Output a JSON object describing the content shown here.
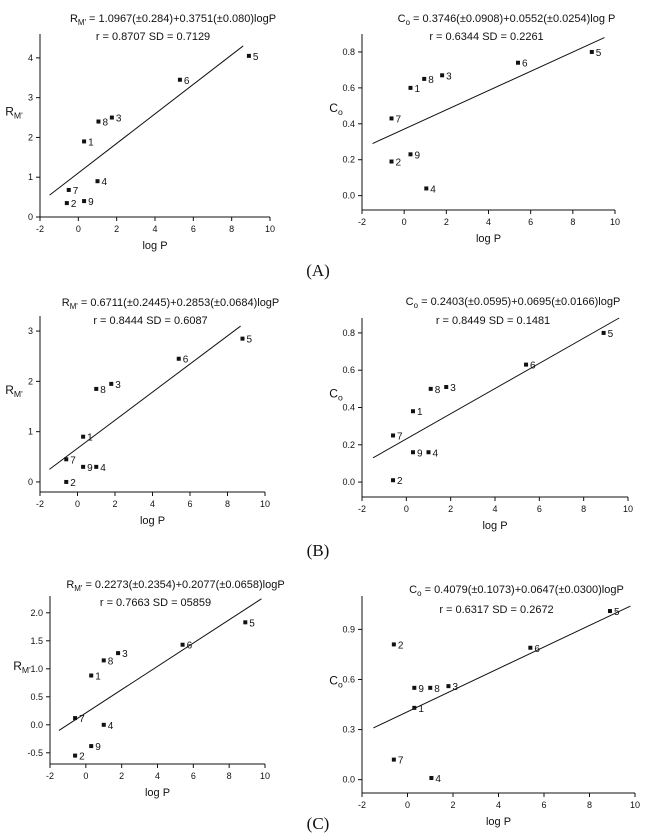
{
  "panel_labels": [
    "(A)",
    "(B)",
    "(C)"
  ],
  "chart_data": [
    {
      "type": "scatter",
      "title": "R_M' = 1.0967(±0.284)+0.3751(±0.080)logP",
      "subtitle": "r = 0.8707   SD = 0.7129",
      "xlabel": "log P",
      "ylabel": "R_M'",
      "xlim": [
        -2,
        10
      ],
      "ylim": [
        0,
        4.6
      ],
      "xticks": [
        -2,
        0,
        2,
        4,
        6,
        8,
        10
      ],
      "yticks": [
        0,
        1,
        2,
        3,
        4
      ],
      "points": [
        {
          "label": "1",
          "x": 0.3,
          "y": 1.9
        },
        {
          "label": "2",
          "x": -0.6,
          "y": 0.35
        },
        {
          "label": "3",
          "x": 1.75,
          "y": 2.5
        },
        {
          "label": "4",
          "x": 1.0,
          "y": 0.9
        },
        {
          "label": "5",
          "x": 8.9,
          "y": 4.05
        },
        {
          "label": "6",
          "x": 5.3,
          "y": 3.45
        },
        {
          "label": "7",
          "x": -0.5,
          "y": 0.68
        },
        {
          "label": "8",
          "x": 1.05,
          "y": 2.4
        },
        {
          "label": "9",
          "x": 0.3,
          "y": 0.4
        }
      ],
      "fit": {
        "x": [
          -1.5,
          8.6
        ],
        "y": [
          0.55,
          4.3
        ]
      }
    },
    {
      "type": "scatter",
      "title": "C_o = 0.3746(±0.0908)+0.0552(±0.0254)log P",
      "subtitle": "r = 0.6344   SD = 0.2261",
      "xlabel": "log P",
      "ylabel": "C_o",
      "xlim": [
        -2,
        10
      ],
      "ylim": [
        -0.08,
        0.9
      ],
      "xticks": [
        -2,
        0,
        2,
        4,
        6,
        8,
        10
      ],
      "yticks": [
        0.0,
        0.2,
        0.4,
        0.6,
        0.8
      ],
      "tick_labels_y": [
        "0.0",
        "0.2",
        "0.4",
        "0.6",
        "0.8"
      ],
      "points": [
        {
          "label": "1",
          "x": 0.3,
          "y": 0.6
        },
        {
          "label": "2",
          "x": -0.6,
          "y": 0.19
        },
        {
          "label": "3",
          "x": 1.8,
          "y": 0.67
        },
        {
          "label": "4",
          "x": 1.05,
          "y": 0.04
        },
        {
          "label": "5",
          "x": 8.9,
          "y": 0.8
        },
        {
          "label": "6",
          "x": 5.4,
          "y": 0.74
        },
        {
          "label": "7",
          "x": -0.6,
          "y": 0.43
        },
        {
          "label": "8",
          "x": 0.95,
          "y": 0.65
        },
        {
          "label": "9",
          "x": 0.3,
          "y": 0.23
        }
      ],
      "fit": {
        "x": [
          -1.5,
          9.5
        ],
        "y": [
          0.29,
          0.88
        ]
      }
    },
    {
      "type": "scatter",
      "title": "R_M' = 0.6711(±0.2445)+0.2853(±0.0684)logP",
      "subtitle": "r = 0.8444   SD = 0.6087",
      "xlabel": "log P",
      "ylabel": "R_M'",
      "xlim": [
        -2,
        10
      ],
      "ylim": [
        -0.2,
        3.3
      ],
      "xticks": [
        -2,
        0,
        2,
        4,
        6,
        8,
        10
      ],
      "yticks": [
        0,
        1,
        2,
        3
      ],
      "points": [
        {
          "label": "1",
          "x": 0.3,
          "y": 0.9
        },
        {
          "label": "2",
          "x": -0.6,
          "y": 0.0
        },
        {
          "label": "3",
          "x": 1.8,
          "y": 1.95
        },
        {
          "label": "4",
          "x": 1.0,
          "y": 0.3
        },
        {
          "label": "5",
          "x": 8.8,
          "y": 2.85
        },
        {
          "label": "6",
          "x": 5.4,
          "y": 2.45
        },
        {
          "label": "7",
          "x": -0.6,
          "y": 0.45
        },
        {
          "label": "8",
          "x": 1.0,
          "y": 1.85
        },
        {
          "label": "9",
          "x": 0.3,
          "y": 0.3
        }
      ],
      "fit": {
        "x": [
          -1.5,
          8.7
        ],
        "y": [
          0.25,
          3.1
        ]
      }
    },
    {
      "type": "scatter",
      "title": "C_o = 0.2403(±0.0595)+0.0695(±0.0166)logP",
      "subtitle": "r = 0.8449   SD = 0.1481",
      "xlabel": "log P",
      "ylabel": "C_o",
      "xlim": [
        -2,
        10
      ],
      "ylim": [
        -0.08,
        0.88
      ],
      "xticks": [
        -2,
        0,
        2,
        4,
        6,
        8,
        10
      ],
      "yticks": [
        0.0,
        0.2,
        0.4,
        0.6,
        0.8
      ],
      "tick_labels_y": [
        "0.0",
        "0.2",
        "0.4",
        "0.6",
        "0.8"
      ],
      "points": [
        {
          "label": "1",
          "x": 0.3,
          "y": 0.38
        },
        {
          "label": "2",
          "x": -0.6,
          "y": 0.01
        },
        {
          "label": "3",
          "x": 1.8,
          "y": 0.51
        },
        {
          "label": "4",
          "x": 1.0,
          "y": 0.16
        },
        {
          "label": "5",
          "x": 8.9,
          "y": 0.8
        },
        {
          "label": "6",
          "x": 5.4,
          "y": 0.63
        },
        {
          "label": "7",
          "x": -0.6,
          "y": 0.25
        },
        {
          "label": "8",
          "x": 1.1,
          "y": 0.5
        },
        {
          "label": "9",
          "x": 0.3,
          "y": 0.16
        }
      ],
      "fit": {
        "x": [
          -1.5,
          9.6
        ],
        "y": [
          0.13,
          0.88
        ]
      }
    },
    {
      "type": "scatter",
      "title": "R_M' = 0.2273(±0.2354)+0.2077(±0.0658)logP",
      "subtitle": "r = 0.7663   SD = 05859",
      "xlabel": "log P",
      "ylabel": "R_M'",
      "xlim": [
        -2,
        10
      ],
      "ylim": [
        -0.7,
        2.3
      ],
      "xticks": [
        -2,
        0,
        2,
        4,
        6,
        8,
        10
      ],
      "yticks": [
        -0.5,
        0.0,
        0.5,
        1.0,
        1.5,
        2.0
      ],
      "tick_labels_y": [
        "-0.5",
        "0.0",
        "0.5",
        "1.0",
        "1.5",
        "2.0"
      ],
      "points": [
        {
          "label": "1",
          "x": 0.3,
          "y": 0.88
        },
        {
          "label": "2",
          "x": -0.6,
          "y": -0.55
        },
        {
          "label": "3",
          "x": 1.8,
          "y": 1.28
        },
        {
          "label": "4",
          "x": 1.0,
          "y": 0.0
        },
        {
          "label": "5",
          "x": 8.9,
          "y": 1.83
        },
        {
          "label": "6",
          "x": 5.4,
          "y": 1.43
        },
        {
          "label": "7",
          "x": -0.6,
          "y": 0.12
        },
        {
          "label": "8",
          "x": 1.0,
          "y": 1.15
        },
        {
          "label": "9",
          "x": 0.3,
          "y": -0.38
        }
      ],
      "fit": {
        "x": [
          -1.5,
          9.8
        ],
        "y": [
          -0.1,
          2.25
        ]
      }
    },
    {
      "type": "scatter",
      "title": "C_o = 0.4079(±0.1073)+0.0647(±0.0300)logP",
      "subtitle": "r = 0.6317     SD = 0.2672",
      "xlabel": "log P",
      "ylabel": "C_o",
      "xlim": [
        -2,
        10
      ],
      "ylim": [
        -0.08,
        1.1
      ],
      "xticks": [
        -2,
        0,
        2,
        4,
        6,
        8,
        10
      ],
      "yticks": [
        0.0,
        0.3,
        0.6,
        0.9
      ],
      "tick_labels_y": [
        "0.0",
        "0.3",
        "0.6",
        "0.9"
      ],
      "points": [
        {
          "label": "1",
          "x": 0.3,
          "y": 0.43
        },
        {
          "label": "2",
          "x": -0.6,
          "y": 0.81
        },
        {
          "label": "3",
          "x": 1.8,
          "y": 0.56
        },
        {
          "label": "4",
          "x": 1.05,
          "y": 0.01
        },
        {
          "label": "5",
          "x": 8.9,
          "y": 1.01
        },
        {
          "label": "6",
          "x": 5.4,
          "y": 0.79
        },
        {
          "label": "7",
          "x": -0.6,
          "y": 0.12
        },
        {
          "label": "8",
          "x": 1.0,
          "y": 0.55
        },
        {
          "label": "9",
          "x": 0.3,
          "y": 0.55
        }
      ],
      "fit": {
        "x": [
          -1.5,
          9.8
        ],
        "y": [
          0.31,
          1.04
        ]
      }
    }
  ]
}
